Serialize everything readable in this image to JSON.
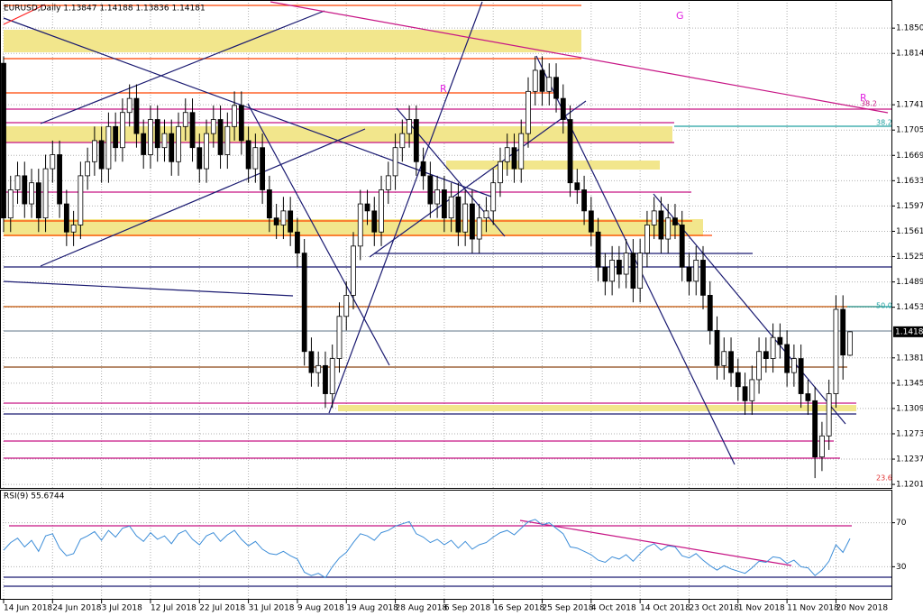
{
  "chart_data": [
    {
      "type": "candlestick",
      "title": "EURUSD,Daily  1.13847 1.14188 1.13836 1.14181",
      "categories": [
        "14 Jun 2018",
        null,
        null,
        null,
        null,
        null,
        null,
        "24 Jun 2018",
        null,
        null,
        null,
        null,
        null,
        null,
        "3 Jul 2018",
        null,
        null,
        null,
        null,
        null,
        null,
        "12 Jul 2018",
        null,
        null,
        null,
        null,
        null,
        null,
        "22 Jul 2018",
        null,
        null,
        null,
        null,
        null,
        null,
        "31 Jul 2018",
        null,
        null,
        null,
        null,
        null,
        null,
        "9 Aug 2018",
        null,
        null,
        null,
        null,
        null,
        null,
        "19 Aug 2018",
        null,
        null,
        null,
        null,
        null,
        null,
        "28 Aug 2018",
        null,
        null,
        null,
        null,
        null,
        null,
        "6 Sep 2018",
        null,
        null,
        null,
        null,
        null,
        null,
        "16 Sep 2018",
        null,
        null,
        null,
        null,
        null,
        null,
        "25 Sep 2018",
        null,
        null,
        null,
        null,
        null,
        null,
        "4 Oct 2018",
        null,
        null,
        null,
        null,
        null,
        null,
        "14 Oct 2018",
        null,
        null,
        null,
        null,
        null,
        null,
        "23 Oct 2018",
        null,
        null,
        null,
        null,
        null,
        null,
        "1 Nov 2018",
        null,
        null,
        null,
        null,
        null,
        null,
        "11 Nov 2018",
        null,
        null,
        null,
        null,
        null,
        null,
        "20 Nov 2018",
        null,
        null
      ],
      "open": [
        1.18,
        1.158,
        1.162,
        1.164,
        1.16,
        1.163,
        1.158,
        1.165,
        1.167,
        1.16,
        1.156,
        1.157,
        1.164,
        1.166,
        1.169,
        1.165,
        1.171,
        1.168,
        1.173,
        1.175,
        1.17,
        1.167,
        1.172,
        1.168,
        1.17,
        1.166,
        1.171,
        1.173,
        1.168,
        1.165,
        1.17,
        1.172,
        1.167,
        1.171,
        1.174,
        1.169,
        1.165,
        1.168,
        1.162,
        1.158,
        1.157,
        1.159,
        1.156,
        1.153,
        1.139,
        1.136,
        1.137,
        1.133,
        1.138,
        1.144,
        1.147,
        1.154,
        1.16,
        1.159,
        1.156,
        1.162,
        1.164,
        1.168,
        1.17,
        1.172,
        1.166,
        1.164,
        1.16,
        1.162,
        1.158,
        1.161,
        1.156,
        1.16,
        1.155,
        1.158,
        1.159,
        1.163,
        1.166,
        1.168,
        1.165,
        1.17,
        1.176,
        1.179,
        1.176,
        1.178,
        1.175,
        1.172,
        1.163,
        1.162,
        1.159,
        1.156,
        1.151,
        1.149,
        1.152,
        1.15,
        1.153,
        1.148,
        1.153,
        1.157,
        1.159,
        1.155,
        1.158,
        1.157,
        1.151,
        1.149,
        1.152,
        1.147,
        1.142,
        1.137,
        1.139,
        1.136,
        1.134,
        1.132,
        1.135,
        1.139,
        1.138,
        1.141,
        1.14,
        1.136,
        1.138,
        1.133,
        1.132,
        1.124,
        1.127,
        1.133,
        1.145,
        1.13847
      ],
      "high": [
        1.181,
        1.164,
        1.166,
        1.166,
        1.165,
        1.165,
        1.167,
        1.169,
        1.169,
        1.162,
        1.159,
        1.166,
        1.168,
        1.171,
        1.171,
        1.173,
        1.173,
        1.175,
        1.177,
        1.177,
        1.172,
        1.174,
        1.174,
        1.172,
        1.172,
        1.173,
        1.175,
        1.175,
        1.17,
        1.172,
        1.174,
        1.174,
        1.173,
        1.176,
        1.176,
        1.171,
        1.17,
        1.17,
        1.164,
        1.16,
        1.161,
        1.161,
        1.158,
        1.155,
        1.141,
        1.139,
        1.139,
        1.14,
        1.146,
        1.149,
        1.156,
        1.162,
        1.162,
        1.161,
        1.164,
        1.166,
        1.17,
        1.172,
        1.174,
        1.174,
        1.168,
        1.166,
        1.164,
        1.164,
        1.163,
        1.163,
        1.162,
        1.162,
        1.16,
        1.161,
        1.165,
        1.168,
        1.17,
        1.17,
        1.172,
        1.178,
        1.181,
        1.181,
        1.18,
        1.18,
        1.177,
        1.174,
        1.165,
        1.164,
        1.161,
        1.158,
        1.153,
        1.154,
        1.154,
        1.155,
        1.155,
        1.155,
        1.159,
        1.161,
        1.161,
        1.16,
        1.16,
        1.159,
        1.153,
        1.154,
        1.154,
        1.149,
        1.144,
        1.141,
        1.141,
        1.138,
        1.136,
        1.137,
        1.141,
        1.141,
        1.143,
        1.143,
        1.142,
        1.14,
        1.14,
        1.135,
        1.134,
        1.129,
        1.135,
        1.147,
        1.147,
        1.14188
      ],
      "low": [
        1.156,
        1.156,
        1.16,
        1.158,
        1.158,
        1.156,
        1.156,
        1.163,
        1.158,
        1.154,
        1.154,
        1.155,
        1.162,
        1.164,
        1.163,
        1.163,
        1.166,
        1.166,
        1.171,
        1.168,
        1.165,
        1.165,
        1.166,
        1.166,
        1.164,
        1.164,
        1.169,
        1.166,
        1.163,
        1.163,
        1.168,
        1.165,
        1.165,
        1.169,
        1.167,
        1.163,
        1.163,
        1.16,
        1.156,
        1.155,
        1.155,
        1.154,
        1.151,
        1.137,
        1.134,
        1.134,
        1.131,
        1.131,
        1.136,
        1.142,
        1.145,
        1.152,
        1.157,
        1.154,
        1.154,
        1.16,
        1.162,
        1.166,
        1.168,
        1.164,
        1.162,
        1.158,
        1.158,
        1.156,
        1.156,
        1.154,
        1.154,
        1.153,
        1.153,
        1.156,
        1.157,
        1.161,
        1.164,
        1.163,
        1.163,
        1.168,
        1.174,
        1.174,
        1.174,
        1.173,
        1.17,
        1.161,
        1.16,
        1.157,
        1.154,
        1.149,
        1.147,
        1.147,
        1.148,
        1.148,
        1.146,
        1.146,
        1.151,
        1.155,
        1.153,
        1.153,
        1.155,
        1.149,
        1.147,
        1.147,
        1.145,
        1.14,
        1.135,
        1.135,
        1.134,
        1.132,
        1.13,
        1.13,
        1.133,
        1.136,
        1.136,
        1.138,
        1.134,
        1.134,
        1.131,
        1.13,
        1.121,
        1.122,
        1.125,
        1.131,
        1.135,
        1.13836
      ],
      "close": [
        1.158,
        1.162,
        1.164,
        1.16,
        1.163,
        1.158,
        1.165,
        1.167,
        1.16,
        1.156,
        1.157,
        1.164,
        1.166,
        1.169,
        1.165,
        1.171,
        1.168,
        1.173,
        1.175,
        1.17,
        1.167,
        1.172,
        1.168,
        1.17,
        1.166,
        1.171,
        1.173,
        1.168,
        1.165,
        1.17,
        1.172,
        1.167,
        1.171,
        1.174,
        1.169,
        1.165,
        1.168,
        1.162,
        1.158,
        1.157,
        1.159,
        1.156,
        1.153,
        1.139,
        1.136,
        1.137,
        1.133,
        1.138,
        1.144,
        1.147,
        1.154,
        1.16,
        1.159,
        1.156,
        1.162,
        1.164,
        1.168,
        1.17,
        1.172,
        1.166,
        1.164,
        1.16,
        1.162,
        1.158,
        1.161,
        1.156,
        1.16,
        1.155,
        1.158,
        1.159,
        1.163,
        1.166,
        1.168,
        1.165,
        1.17,
        1.176,
        1.179,
        1.176,
        1.178,
        1.175,
        1.172,
        1.163,
        1.162,
        1.159,
        1.156,
        1.151,
        1.149,
        1.152,
        1.15,
        1.153,
        1.148,
        1.153,
        1.157,
        1.159,
        1.155,
        1.158,
        1.157,
        1.151,
        1.149,
        1.152,
        1.147,
        1.142,
        1.137,
        1.139,
        1.136,
        1.134,
        1.132,
        1.135,
        1.139,
        1.138,
        1.141,
        1.14,
        1.136,
        1.138,
        1.133,
        1.132,
        1.124,
        1.127,
        1.133,
        1.145,
        1.1385,
        1.14181
      ],
      "ylim": [
        1.1196,
        1.189
      ],
      "yticks": [
        {
          "value": 1.185,
          "label": "1.18500"
        },
        {
          "value": 1.1814,
          "label": "1.18140"
        },
        {
          "value": 1.1741,
          "label": "1.17410"
        },
        {
          "value": 1.1705,
          "label": "1.17050"
        },
        {
          "value": 1.1669,
          "label": "1.16690"
        },
        {
          "value": 1.1633,
          "label": "1.16330"
        },
        {
          "value": 1.1597,
          "label": "1.15970"
        },
        {
          "value": 1.1561,
          "label": "1.15610"
        },
        {
          "value": 1.1525,
          "label": "1.15250"
        },
        {
          "value": 1.1489,
          "label": "1.14890"
        },
        {
          "value": 1.1453,
          "label": "1.14530"
        },
        {
          "value": 1.1381,
          "label": "1.13810"
        },
        {
          "value": 1.1345,
          "label": "1.13450"
        },
        {
          "value": 1.1309,
          "label": "1.13090"
        },
        {
          "value": 1.1273,
          "label": "1.12730"
        },
        {
          "value": 1.1237,
          "label": "1.12370"
        },
        {
          "value": 1.1201,
          "label": "1.12010"
        }
      ],
      "grid": true,
      "current_price_label": "1.14181",
      "annotations": [
        "38.2",
        "38.2",
        "50.0",
        "23.6",
        "G",
        "R",
        "R"
      ]
    },
    {
      "type": "line",
      "title": "RSI(9) 55.6744",
      "color": "#3c8dd8",
      "values": [
        45,
        52,
        56,
        48,
        54,
        44,
        58,
        60,
        47,
        40,
        42,
        55,
        58,
        62,
        54,
        63,
        57,
        65,
        67,
        58,
        53,
        61,
        55,
        58,
        51,
        60,
        63,
        55,
        50,
        58,
        61,
        53,
        59,
        63,
        55,
        49,
        53,
        46,
        42,
        41,
        44,
        40,
        37,
        25,
        22,
        24,
        20,
        30,
        38,
        43,
        52,
        60,
        58,
        54,
        61,
        63,
        67,
        69,
        71,
        60,
        57,
        52,
        55,
        50,
        54,
        47,
        53,
        46,
        50,
        52,
        57,
        61,
        63,
        59,
        65,
        71,
        73,
        68,
        70,
        65,
        60,
        48,
        47,
        44,
        41,
        36,
        34,
        39,
        37,
        41,
        35,
        42,
        48,
        51,
        45,
        49,
        48,
        40,
        38,
        42,
        36,
        31,
        27,
        31,
        28,
        26,
        24,
        29,
        35,
        34,
        39,
        38,
        33,
        36,
        30,
        29,
        22,
        27,
        35,
        50,
        43,
        55.6744
      ],
      "ylim": [
        0,
        100
      ],
      "yticks": [
        70,
        30
      ],
      "grid": true
    }
  ]
}
